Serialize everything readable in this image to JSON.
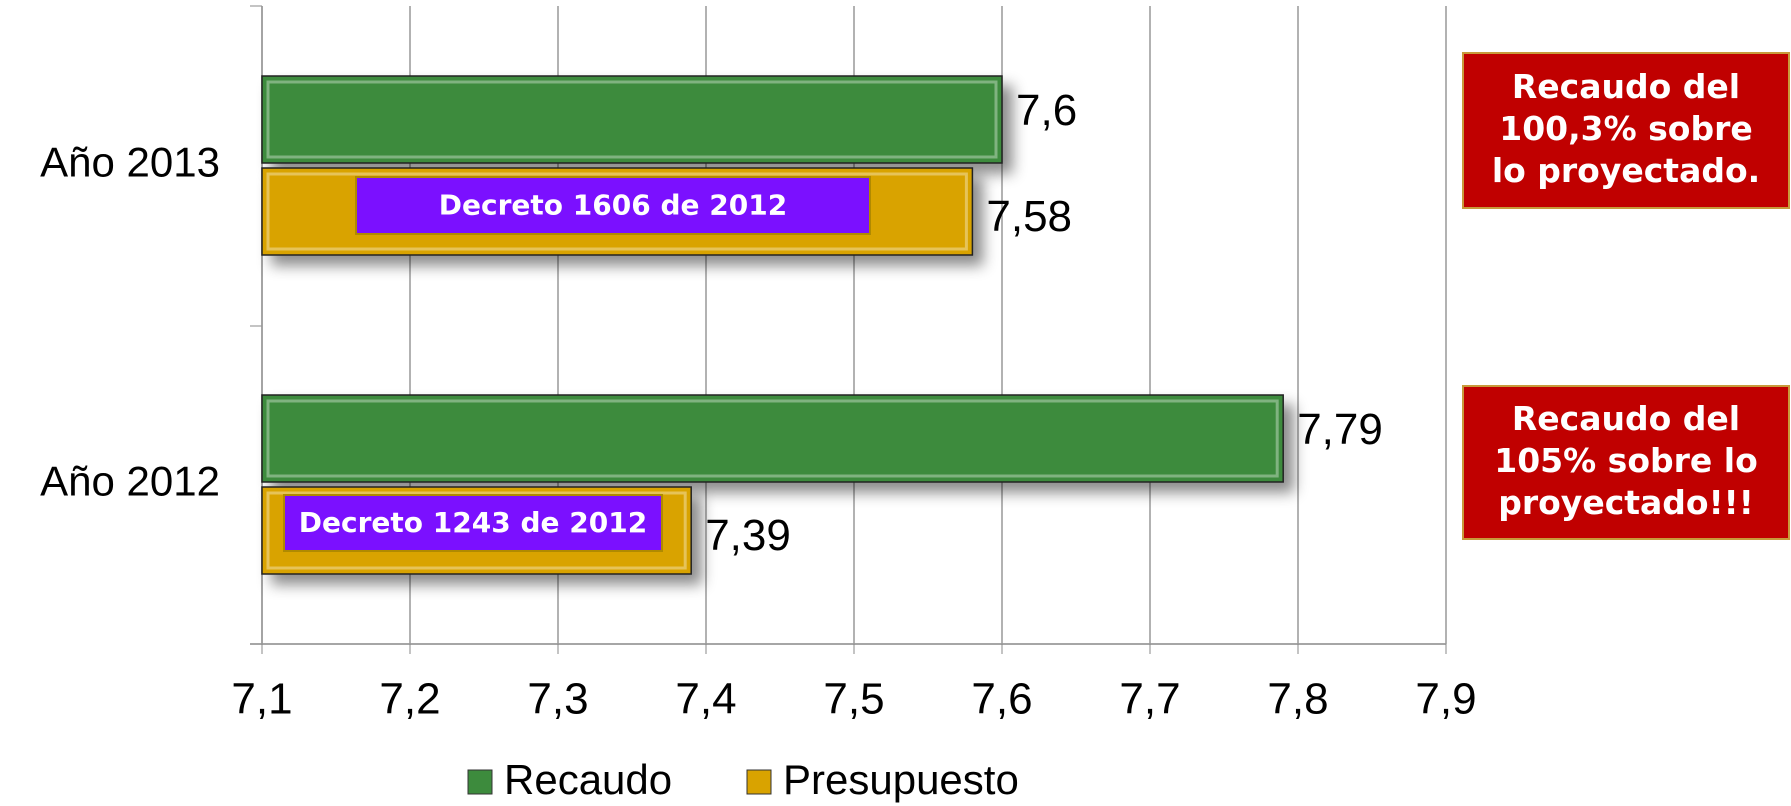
{
  "chart_data": {
    "type": "barh",
    "categories": [
      "Año 2013",
      "Año 2012"
    ],
    "series": [
      {
        "name": "Recaudo",
        "color": "#3d8b3d",
        "values": [
          7.6,
          7.79
        ],
        "value_labels": [
          "7,6",
          "7,79"
        ]
      },
      {
        "name": "Presupuesto",
        "color": "#d9a300",
        "values": [
          7.58,
          7.39
        ],
        "value_labels": [
          "7,58",
          "7,39"
        ]
      }
    ],
    "xlim": [
      7.1,
      7.9
    ],
    "xticks": [
      {
        "value": 7.1,
        "label": "7,1"
      },
      {
        "value": 7.2,
        "label": "7,2"
      },
      {
        "value": 7.3,
        "label": "7,3"
      },
      {
        "value": 7.4,
        "label": "7,4"
      },
      {
        "value": 7.5,
        "label": "7,5"
      },
      {
        "value": 7.6,
        "label": "7,6"
      },
      {
        "value": 7.7,
        "label": "7,7"
      },
      {
        "value": 7.8,
        "label": "7,8"
      },
      {
        "value": 7.9,
        "label": "7,9"
      }
    ],
    "grid": true,
    "legend": "bottom",
    "bar_notes": [
      "Decreto 1606 de 2012",
      "Decreto 1243 de 2012"
    ],
    "callouts": [
      [
        "Recaudo del",
        "100,3% sobre",
        "lo proyectado."
      ],
      [
        "Recaudo del",
        "105% sobre lo",
        "proyectado!!!"
      ]
    ]
  }
}
